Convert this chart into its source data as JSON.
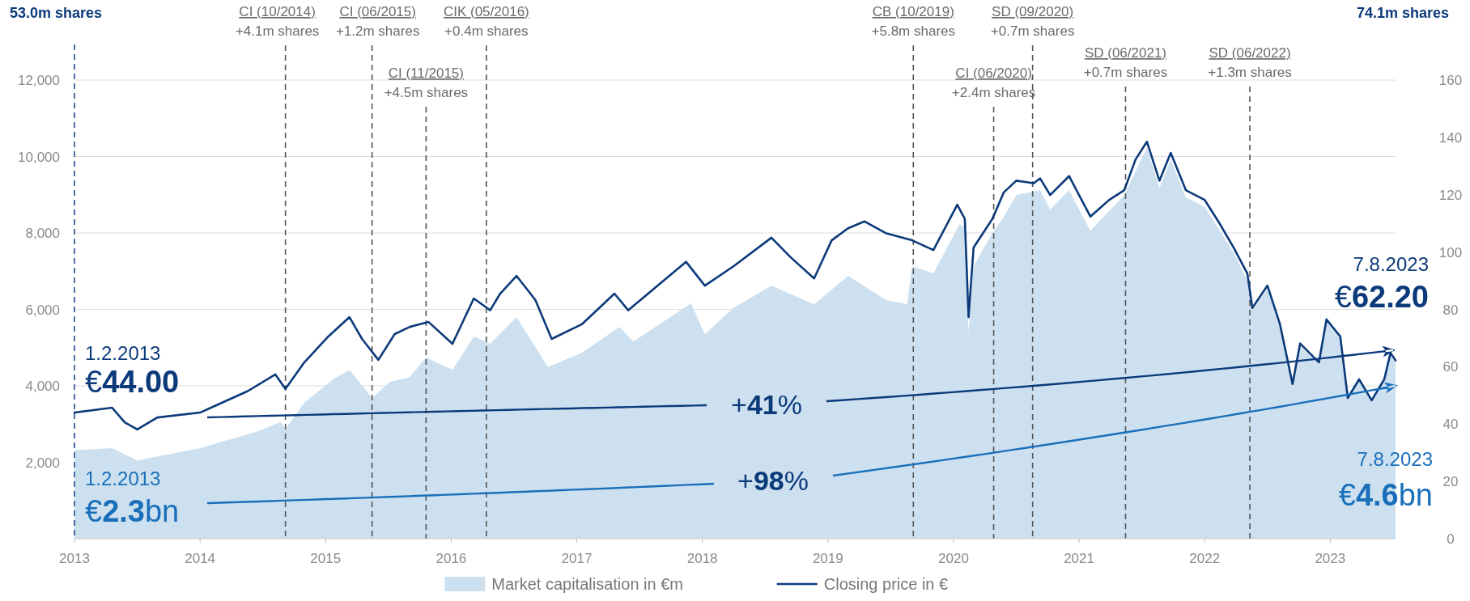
{
  "chart_data": {
    "type": "area",
    "xlim": [
      2013,
      2023.52
    ],
    "xticks": [
      2013,
      2014,
      2015,
      2016,
      2017,
      2018,
      2019,
      2020,
      2021,
      2022,
      2023
    ],
    "ylim": [
      0,
      12000
    ],
    "yticks": [
      {
        "value": 2000,
        "label": "2,000"
      },
      {
        "value": 4000,
        "label": "4,000"
      },
      {
        "value": 6000,
        "label": "6,000"
      },
      {
        "value": 8000,
        "label": "8,000"
      },
      {
        "value": 10000,
        "label": "10,000"
      },
      {
        "value": 12000,
        "label": "12,000"
      }
    ],
    "y2lim": [
      0,
      160
    ],
    "y2ticks": [
      0,
      20,
      40,
      60,
      80,
      100,
      120,
      140,
      160
    ],
    "grid": "y",
    "legend": "bottom",
    "series": [
      {
        "name": "Market capitalisation in €m",
        "color": "#cde0ef",
        "x": [
          2013.0,
          2013.3,
          2013.5,
          2014.0,
          2014.45,
          2014.64,
          2014.68,
          2014.83,
          2015.06,
          2015.19,
          2015.37,
          2015.51,
          2015.67,
          2015.8,
          2016.01,
          2016.18,
          2016.31,
          2016.52,
          2016.77,
          2017.04,
          2017.34,
          2017.45,
          2017.91,
          2018.02,
          2018.25,
          2018.55,
          2018.89,
          2019.16,
          2019.46,
          2019.63,
          2019.67,
          2019.84,
          2020.05,
          2020.09,
          2020.12,
          2020.16,
          2020.31,
          2020.39,
          2020.5,
          2020.69,
          2020.77,
          2020.92,
          2021.09,
          2021.36,
          2021.54,
          2021.64,
          2021.73,
          2021.85,
          2022.0,
          2022.23,
          2022.34,
          2022.38,
          2022.5,
          2022.6,
          2022.7,
          2022.76,
          2022.91,
          2022.97,
          2023.08,
          2023.14,
          2023.23,
          2023.33,
          2023.43,
          2023.48,
          2023.52
        ],
        "values": [
          2310,
          2370,
          2050,
          2370,
          2800,
          3050,
          2870,
          3560,
          4170,
          4420,
          3680,
          4100,
          4230,
          4740,
          4420,
          5290,
          5100,
          5800,
          4490,
          4860,
          5540,
          5160,
          6160,
          5350,
          6040,
          6620,
          6130,
          6880,
          6250,
          6130,
          7130,
          6940,
          8240,
          8130,
          5420,
          7130,
          8000,
          8370,
          8990,
          9120,
          8610,
          9120,
          8060,
          8990,
          10240,
          9180,
          9920,
          8930,
          8680,
          7490,
          6750,
          5970,
          6540,
          5540,
          4000,
          5050,
          4560,
          5670,
          5220,
          3640,
          4120,
          3580,
          4120,
          4800,
          4610
        ]
      },
      {
        "type": "line",
        "axis": "y2",
        "name": "Closing price in €",
        "color": "#0b3a7a",
        "x": [
          2013.0,
          2013.3,
          2013.4,
          2013.5,
          2013.66,
          2014.0,
          2014.38,
          2014.6,
          2014.68,
          2014.83,
          2015.02,
          2015.19,
          2015.29,
          2015.42,
          2015.55,
          2015.67,
          2015.82,
          2016.01,
          2016.18,
          2016.31,
          2016.39,
          2016.52,
          2016.67,
          2016.8,
          2017.04,
          2017.3,
          2017.41,
          2017.87,
          2018.02,
          2018.25,
          2018.55,
          2018.7,
          2018.89,
          2019.03,
          2019.16,
          2019.29,
          2019.46,
          2019.67,
          2019.84,
          2020.03,
          2020.09,
          2020.12,
          2020.16,
          2020.31,
          2020.4,
          2020.5,
          2020.64,
          2020.69,
          2020.77,
          2020.92,
          2021.09,
          2021.24,
          2021.36,
          2021.45,
          2021.54,
          2021.64,
          2021.73,
          2021.85,
          2022.0,
          2022.12,
          2022.23,
          2022.34,
          2022.38,
          2022.5,
          2022.6,
          2022.7,
          2022.76,
          2022.91,
          2022.97,
          2023.08,
          2023.14,
          2023.23,
          2023.33,
          2023.43,
          2023.48,
          2023.52
        ],
        "values": [
          44.0,
          45.7,
          40.6,
          38.1,
          42.3,
          44.0,
          51.5,
          57.3,
          52.3,
          61.5,
          70.5,
          77.3,
          69.7,
          62.4,
          71.4,
          73.9,
          75.6,
          68.0,
          83.8,
          79.7,
          85.5,
          91.7,
          83.3,
          69.7,
          74.8,
          85.5,
          79.7,
          96.6,
          88.3,
          95.1,
          105.0,
          98.3,
          90.8,
          104.1,
          108.3,
          110.7,
          106.6,
          104.1,
          100.7,
          116.5,
          111.6,
          77.3,
          101.6,
          111.6,
          120.8,
          124.9,
          124.0,
          125.7,
          119.9,
          126.5,
          112.4,
          118.2,
          121.6,
          132.3,
          138.5,
          124.9,
          134.6,
          121.6,
          118.2,
          109.9,
          101.6,
          92.5,
          80.5,
          88.3,
          74.8,
          54.0,
          68.1,
          61.5,
          76.5,
          70.5,
          49.1,
          55.6,
          48.3,
          55.6,
          64.8,
          62.2
        ]
      }
    ],
    "ref_lines": [
      {
        "axis": "x",
        "value": 2013,
        "label": null,
        "color": "#1f4e8c",
        "line_style": "dashed"
      },
      {
        "axis": "x",
        "value": 2014.68,
        "label": "CI (10/2014)\n+4.1m shares",
        "color": "#555555",
        "line_style": "dashed"
      },
      {
        "axis": "x",
        "value": 2015.37,
        "label": "CI (06/2015)\n+1.2m shares",
        "color": "#555555",
        "line_style": "dashed"
      },
      {
        "axis": "x",
        "value": 2015.8,
        "label": "CI (11/2015)\n+4.5m shares",
        "color": "#555555",
        "line_style": "dashed"
      },
      {
        "axis": "x",
        "value": 2016.28,
        "label": "CIK (05/2016)\n+0.4m shares",
        "color": "#555555",
        "line_style": "dashed"
      },
      {
        "axis": "x",
        "value": 2019.68,
        "label": "CB (10/2019)\n+5.8m shares",
        "color": "#555555",
        "line_style": "dashed"
      },
      {
        "axis": "x",
        "value": 2020.32,
        "label": "CI (06/2020)\n+2.4m shares",
        "color": "#555555",
        "line_style": "dashed"
      },
      {
        "axis": "x",
        "value": 2020.63,
        "label": "SD (09/2020)\n+0.7m shares",
        "color": "#555555",
        "line_style": "dashed"
      },
      {
        "axis": "x",
        "value": 2021.37,
        "label": "SD (06/2021)\n+0.7m shares",
        "color": "#555555",
        "line_style": "dashed"
      },
      {
        "axis": "x",
        "value": 2022.36,
        "label": "SD (06/2022)\n+1.3m shares",
        "color": "#555555",
        "line_style": "dashed"
      }
    ],
    "annotations": [
      "53.0m shares",
      "74.1m shares",
      "1.2.2013",
      "€44.00",
      "1.2.2013",
      "€2.3bn",
      "+41%",
      "+98%",
      "7.8.2023",
      "€62.20",
      "7.8.2023",
      "€4.6bn"
    ]
  }
}
